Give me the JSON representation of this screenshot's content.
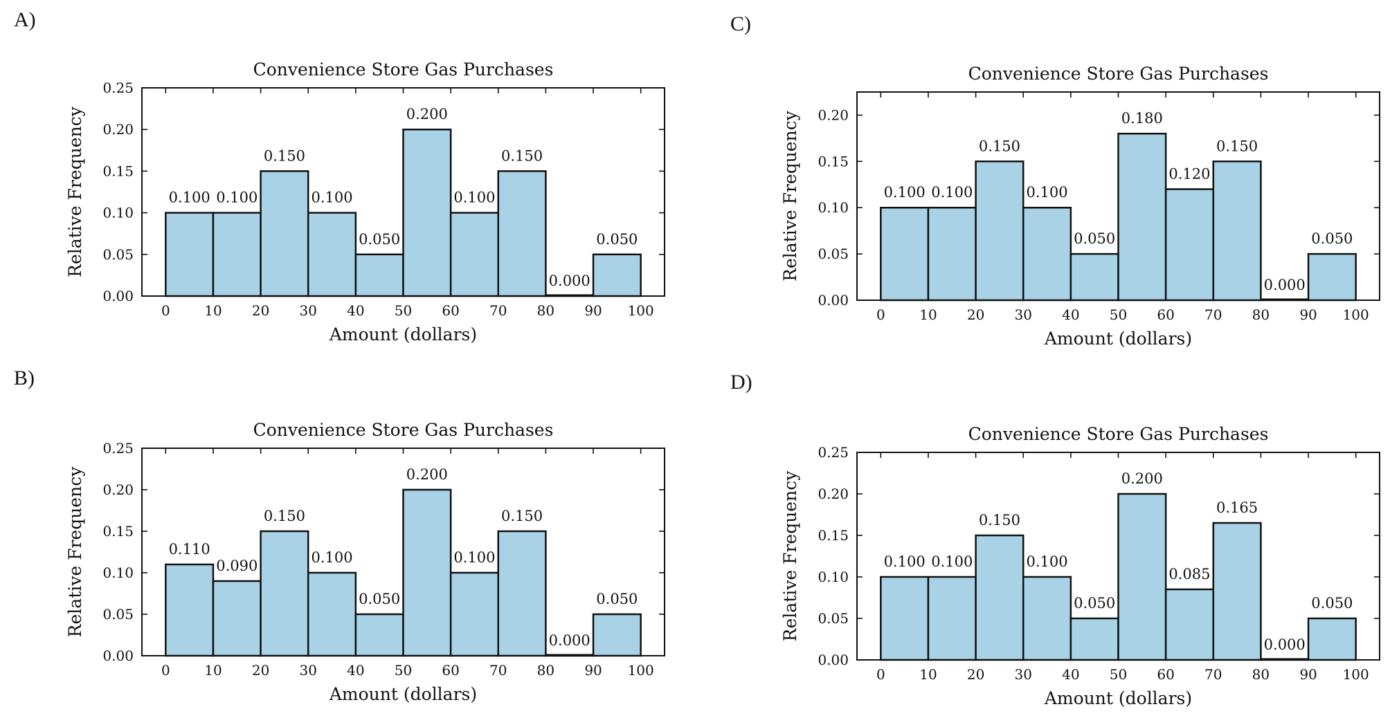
{
  "panels": [
    {
      "id": "A",
      "label": "A)"
    },
    {
      "id": "C",
      "label": "C)"
    },
    {
      "id": "B",
      "label": "B)"
    },
    {
      "id": "D",
      "label": "D)"
    }
  ],
  "chart_data": [
    {
      "panel": "A",
      "type": "bar",
      "title": "Convenience Store Gas Purchases",
      "xlabel": "Amount (dollars)",
      "ylabel": "Relative Frequency",
      "bin_edges": [
        0,
        10,
        20,
        30,
        40,
        50,
        60,
        70,
        80,
        90,
        100
      ],
      "x_ticks": [
        "0",
        "10",
        "20",
        "30",
        "40",
        "50",
        "60",
        "70",
        "80",
        "90",
        "100"
      ],
      "values": [
        0.1,
        0.1,
        0.15,
        0.1,
        0.05,
        0.2,
        0.1,
        0.15,
        0.0,
        0.05
      ],
      "value_labels": [
        "0.100",
        "0.100",
        "0.150",
        "0.100",
        "0.050",
        "0.200",
        "0.100",
        "0.150",
        "0.000",
        "0.050"
      ],
      "y_ticks": [
        "0.00",
        "0.05",
        "0.10",
        "0.15",
        "0.20",
        "0.25"
      ],
      "y_tick_values": [
        0,
        0.05,
        0.1,
        0.15,
        0.2,
        0.25
      ],
      "xlim": [
        -5,
        105
      ],
      "ylim": [
        0,
        0.25
      ],
      "bar_color": "#a9d2e6",
      "grid": false
    },
    {
      "panel": "C",
      "type": "bar",
      "title": "Convenience Store Gas Purchases",
      "xlabel": "Amount (dollars)",
      "ylabel": "Relative Frequency",
      "bin_edges": [
        0,
        10,
        20,
        30,
        40,
        50,
        60,
        70,
        80,
        90,
        100
      ],
      "x_ticks": [
        "0",
        "10",
        "20",
        "30",
        "40",
        "50",
        "60",
        "70",
        "80",
        "90",
        "100"
      ],
      "values": [
        0.1,
        0.1,
        0.15,
        0.1,
        0.05,
        0.18,
        0.12,
        0.15,
        0.0,
        0.05
      ],
      "value_labels": [
        "0.100",
        "0.100",
        "0.150",
        "0.100",
        "0.050",
        "0.180",
        "0.120",
        "0.150",
        "0.000",
        "0.050"
      ],
      "y_ticks": [
        "0.00",
        "0.05",
        "0.10",
        "0.15",
        "0.20"
      ],
      "y_tick_values": [
        0,
        0.05,
        0.1,
        0.15,
        0.2
      ],
      "xlim": [
        -5,
        105
      ],
      "ylim": [
        0,
        0.225
      ],
      "bar_color": "#a9d2e6",
      "grid": false
    },
    {
      "panel": "B",
      "type": "bar",
      "title": "Convenience Store Gas Purchases",
      "xlabel": "Amount (dollars)",
      "ylabel": "Relative Frequency",
      "bin_edges": [
        0,
        10,
        20,
        30,
        40,
        50,
        60,
        70,
        80,
        90,
        100
      ],
      "x_ticks": [
        "0",
        "10",
        "20",
        "30",
        "40",
        "50",
        "60",
        "70",
        "80",
        "90",
        "100"
      ],
      "values": [
        0.11,
        0.09,
        0.15,
        0.1,
        0.05,
        0.2,
        0.1,
        0.15,
        0.0,
        0.05
      ],
      "value_labels": [
        "0.110",
        "0.090",
        "0.150",
        "0.100",
        "0.050",
        "0.200",
        "0.100",
        "0.150",
        "0.000",
        "0.050"
      ],
      "y_ticks": [
        "0.00",
        "0.05",
        "0.10",
        "0.15",
        "0.20",
        "0.25"
      ],
      "y_tick_values": [
        0,
        0.05,
        0.1,
        0.15,
        0.2,
        0.25
      ],
      "xlim": [
        -5,
        105
      ],
      "ylim": [
        0,
        0.25
      ],
      "bar_color": "#a9d2e6",
      "grid": false
    },
    {
      "panel": "D",
      "type": "bar",
      "title": "Convenience Store Gas Purchases",
      "xlabel": "Amount (dollars)",
      "ylabel": "Relative Frequency",
      "bin_edges": [
        0,
        10,
        20,
        30,
        40,
        50,
        60,
        70,
        80,
        90,
        100
      ],
      "x_ticks": [
        "0",
        "10",
        "20",
        "30",
        "40",
        "50",
        "60",
        "70",
        "80",
        "90",
        "100"
      ],
      "values": [
        0.1,
        0.1,
        0.15,
        0.1,
        0.05,
        0.2,
        0.085,
        0.165,
        0.0,
        0.05
      ],
      "value_labels": [
        "0.100",
        "0.100",
        "0.150",
        "0.100",
        "0.050",
        "0.200",
        "0.085",
        "0.165",
        "0.000",
        "0.050"
      ],
      "y_ticks": [
        "0.00",
        "0.05",
        "0.10",
        "0.15",
        "0.20",
        "0.25"
      ],
      "y_tick_values": [
        0,
        0.05,
        0.1,
        0.15,
        0.2,
        0.25
      ],
      "xlim": [
        -5,
        105
      ],
      "ylim": [
        0,
        0.25
      ],
      "bar_color": "#a9d2e6",
      "grid": false
    }
  ]
}
